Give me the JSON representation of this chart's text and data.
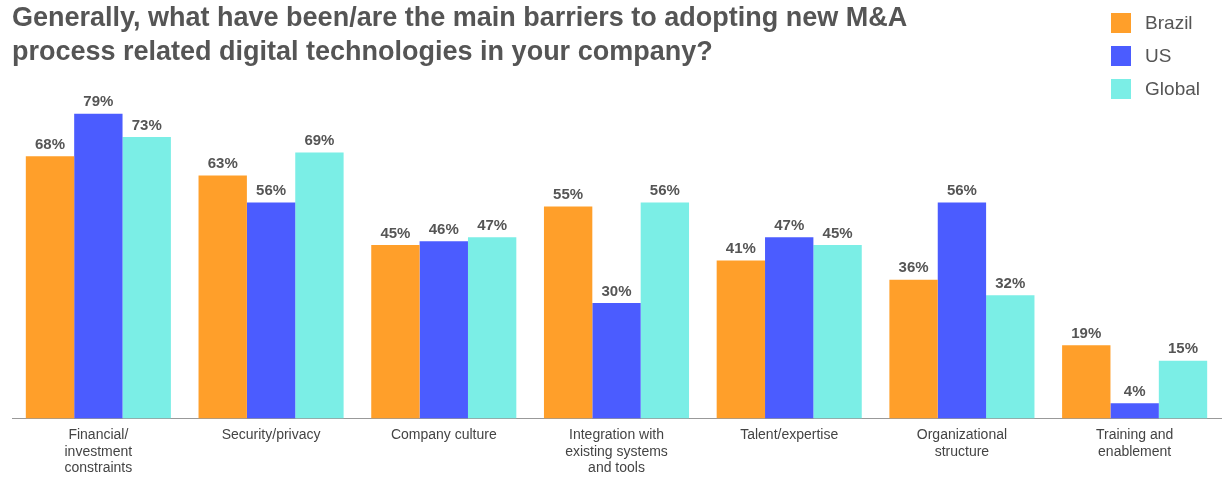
{
  "chart_data": {
    "type": "bar",
    "title": "Generally, what have been/are the main barriers to adopting new M&A process related digital technologies in your company?",
    "categories": [
      "Financial/ investment constraints",
      "Security/privacy",
      "Company culture",
      "Integration with existing systems and tools",
      "Talent/expertise",
      "Organizational structure",
      "Training and enablement"
    ],
    "series": [
      {
        "name": "Brazil",
        "color": "#ff9f2a",
        "values": [
          68,
          63,
          45,
          55,
          41,
          36,
          19
        ],
        "value_labels": [
          "68%",
          "63%",
          "45%",
          "55%",
          "41%",
          "36%",
          "19%"
        ]
      },
      {
        "name": "US",
        "color": "#4b5cff",
        "values": [
          79,
          56,
          46,
          30,
          47,
          56,
          4
        ],
        "value_labels": [
          "79%",
          "56%",
          "46%",
          "30%",
          "47%",
          "56%",
          "4%"
        ]
      },
      {
        "name": "Global",
        "color": "#7beee6",
        "values": [
          73,
          69,
          47,
          56,
          45,
          32,
          15
        ],
        "value_labels": [
          "73%",
          "69%",
          "47%",
          "56%",
          "45%",
          "32%",
          "15%"
        ]
      }
    ],
    "legend": "top right",
    "grid": false
  }
}
